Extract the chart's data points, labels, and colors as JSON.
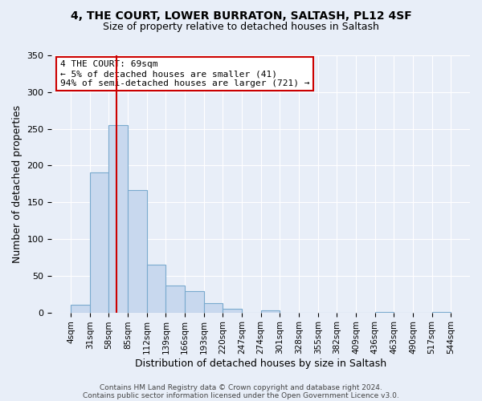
{
  "title": "4, THE COURT, LOWER BURRATON, SALTASH, PL12 4SF",
  "subtitle": "Size of property relative to detached houses in Saltash",
  "xlabel": "Distribution of detached houses by size in Saltash",
  "ylabel": "Number of detached properties",
  "bin_edges": [
    4,
    31,
    58,
    85,
    112,
    139,
    166,
    193,
    220,
    247,
    274,
    301,
    328,
    355,
    382,
    409,
    436,
    463,
    490,
    517,
    544
  ],
  "bin_labels": [
    "4sqm",
    "31sqm",
    "58sqm",
    "85sqm",
    "112sqm",
    "139sqm",
    "166sqm",
    "193sqm",
    "220sqm",
    "247sqm",
    "274sqm",
    "301sqm",
    "328sqm",
    "355sqm",
    "382sqm",
    "409sqm",
    "436sqm",
    "463sqm",
    "490sqm",
    "517sqm",
    "544sqm"
  ],
  "bar_heights": [
    10,
    191,
    255,
    167,
    65,
    37,
    29,
    13,
    5,
    0,
    3,
    0,
    0,
    0,
    0,
    0,
    1,
    0,
    0,
    1
  ],
  "bar_color": "#c8d8ee",
  "bar_edge_color": "#7aaace",
  "vline_x": 69,
  "vline_color": "#cc0000",
  "ylim": [
    0,
    350
  ],
  "yticks": [
    0,
    50,
    100,
    150,
    200,
    250,
    300,
    350
  ],
  "annotation_title": "4 THE COURT: 69sqm",
  "annotation_line1": "← 5% of detached houses are smaller (41)",
  "annotation_line2": "94% of semi-detached houses are larger (721) →",
  "annotation_box_color": "#cc0000",
  "footer_line1": "Contains HM Land Registry data © Crown copyright and database right 2024.",
  "footer_line2": "Contains public sector information licensed under the Open Government Licence v3.0.",
  "background_color": "#e8eef8",
  "plot_bg_color": "#e8eef8",
  "grid_color": "#ffffff"
}
